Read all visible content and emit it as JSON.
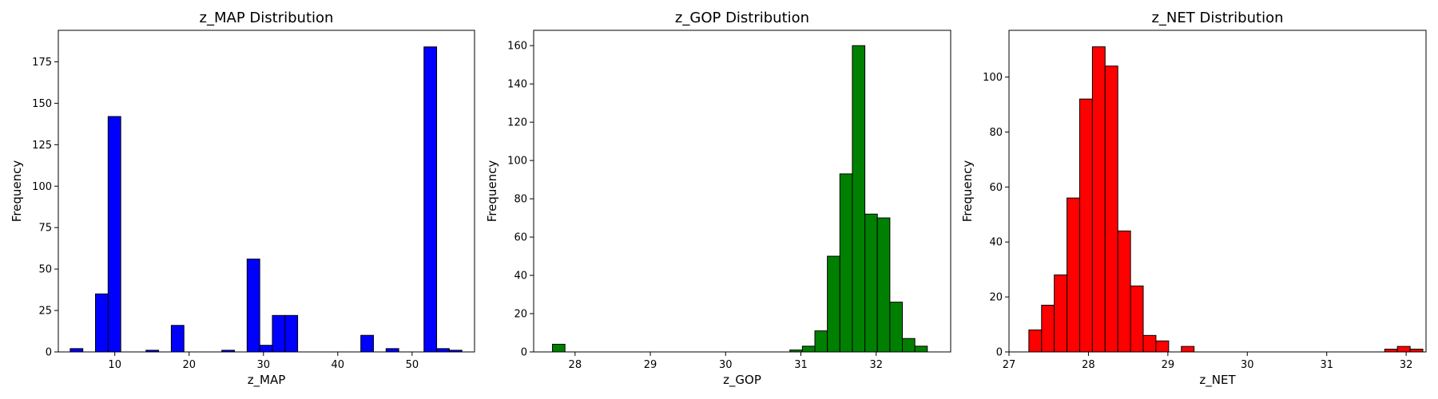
{
  "chart_data": [
    {
      "type": "bar",
      "title": "z_MAP Distribution",
      "xlabel": "z_MAP",
      "ylabel": "Frequency",
      "color": "#0000ff",
      "edgecolor": "#000000",
      "xlim": [
        2.4,
        58.4
      ],
      "ylim": [
        0,
        194
      ],
      "xticks": [
        10,
        20,
        30,
        40,
        50
      ],
      "yticks": [
        0,
        25,
        50,
        75,
        100,
        125,
        150,
        175
      ],
      "bin_start": 4.0,
      "bin_width": 1.7,
      "counts": [
        2,
        0,
        35,
        142,
        0,
        0,
        1,
        0,
        16,
        0,
        0,
        0,
        1,
        0,
        56,
        4,
        22,
        22,
        0,
        0,
        0,
        0,
        0,
        10,
        0,
        2,
        0,
        0,
        184,
        2,
        1
      ]
    },
    {
      "type": "bar",
      "title": "z_GOP Distribution",
      "xlabel": "z_GOP",
      "ylabel": "Frequency",
      "color": "#008000",
      "edgecolor": "#000000",
      "xlim": [
        27.45,
        32.99
      ],
      "ylim": [
        0,
        168
      ],
      "xticks": [
        28,
        29,
        30,
        31,
        32
      ],
      "yticks": [
        0,
        20,
        40,
        60,
        80,
        100,
        120,
        140,
        160
      ],
      "bin_start": 27.7,
      "bin_width": 0.166,
      "counts": [
        4,
        0,
        0,
        0,
        0,
        0,
        0,
        0,
        0,
        0,
        0,
        0,
        0,
        0,
        0,
        0,
        0,
        0,
        0,
        1,
        3,
        11,
        50,
        93,
        160,
        72,
        70,
        26,
        7,
        3
      ]
    },
    {
      "type": "bar",
      "title": "z_NET Distribution",
      "xlabel": "z_NET",
      "ylabel": "Frequency",
      "color": "#ff0000",
      "edgecolor": "#000000",
      "xlim": [
        27.0,
        32.25
      ],
      "ylim": [
        0,
        117
      ],
      "xticks": [
        27,
        28,
        29,
        30,
        31,
        32
      ],
      "yticks": [
        0,
        20,
        40,
        60,
        80,
        100
      ],
      "bin_start": 27.25,
      "bin_width": 0.16,
      "counts": [
        8,
        17,
        28,
        56,
        92,
        111,
        104,
        44,
        24,
        6,
        4,
        0,
        2,
        0,
        0,
        0,
        0,
        0,
        0,
        0,
        0,
        0,
        0,
        0,
        0,
        0,
        0,
        0,
        1,
        2,
        1
      ]
    }
  ]
}
